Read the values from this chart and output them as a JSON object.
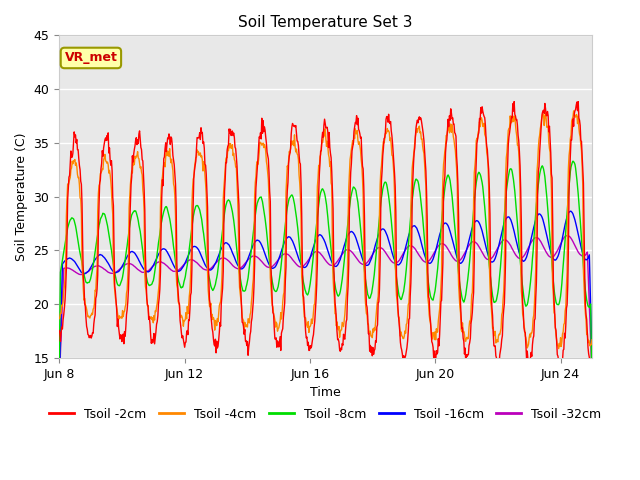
{
  "title": "Soil Temperature Set 3",
  "xlabel": "Time",
  "ylabel": "Soil Temperature (C)",
  "ylim": [
    15,
    45
  ],
  "xlim_days": [
    0,
    17
  ],
  "x_ticks_labels": [
    "Jun 8",
    "Jun 12",
    "Jun 16",
    "Jun 20",
    "Jun 24"
  ],
  "x_ticks_pos": [
    0,
    4,
    8,
    12,
    16
  ],
  "fig_bg_color": "#ffffff",
  "plot_bg_color": "#e8e8e8",
  "legend_labels": [
    "Tsoil -2cm",
    "Tsoil -4cm",
    "Tsoil -8cm",
    "Tsoil -16cm",
    "Tsoil -32cm"
  ],
  "line_colors": [
    "#ff0000",
    "#ff8800",
    "#00dd00",
    "#0000ff",
    "#bb00bb"
  ],
  "annotation_text": "VR_met",
  "annotation_bg": "#ffffaa",
  "annotation_border": "#999900",
  "title_fontsize": 11,
  "label_fontsize": 9,
  "tick_fontsize": 9,
  "legend_fontsize": 9,
  "yticks": [
    15,
    20,
    25,
    30,
    35,
    40,
    45
  ]
}
